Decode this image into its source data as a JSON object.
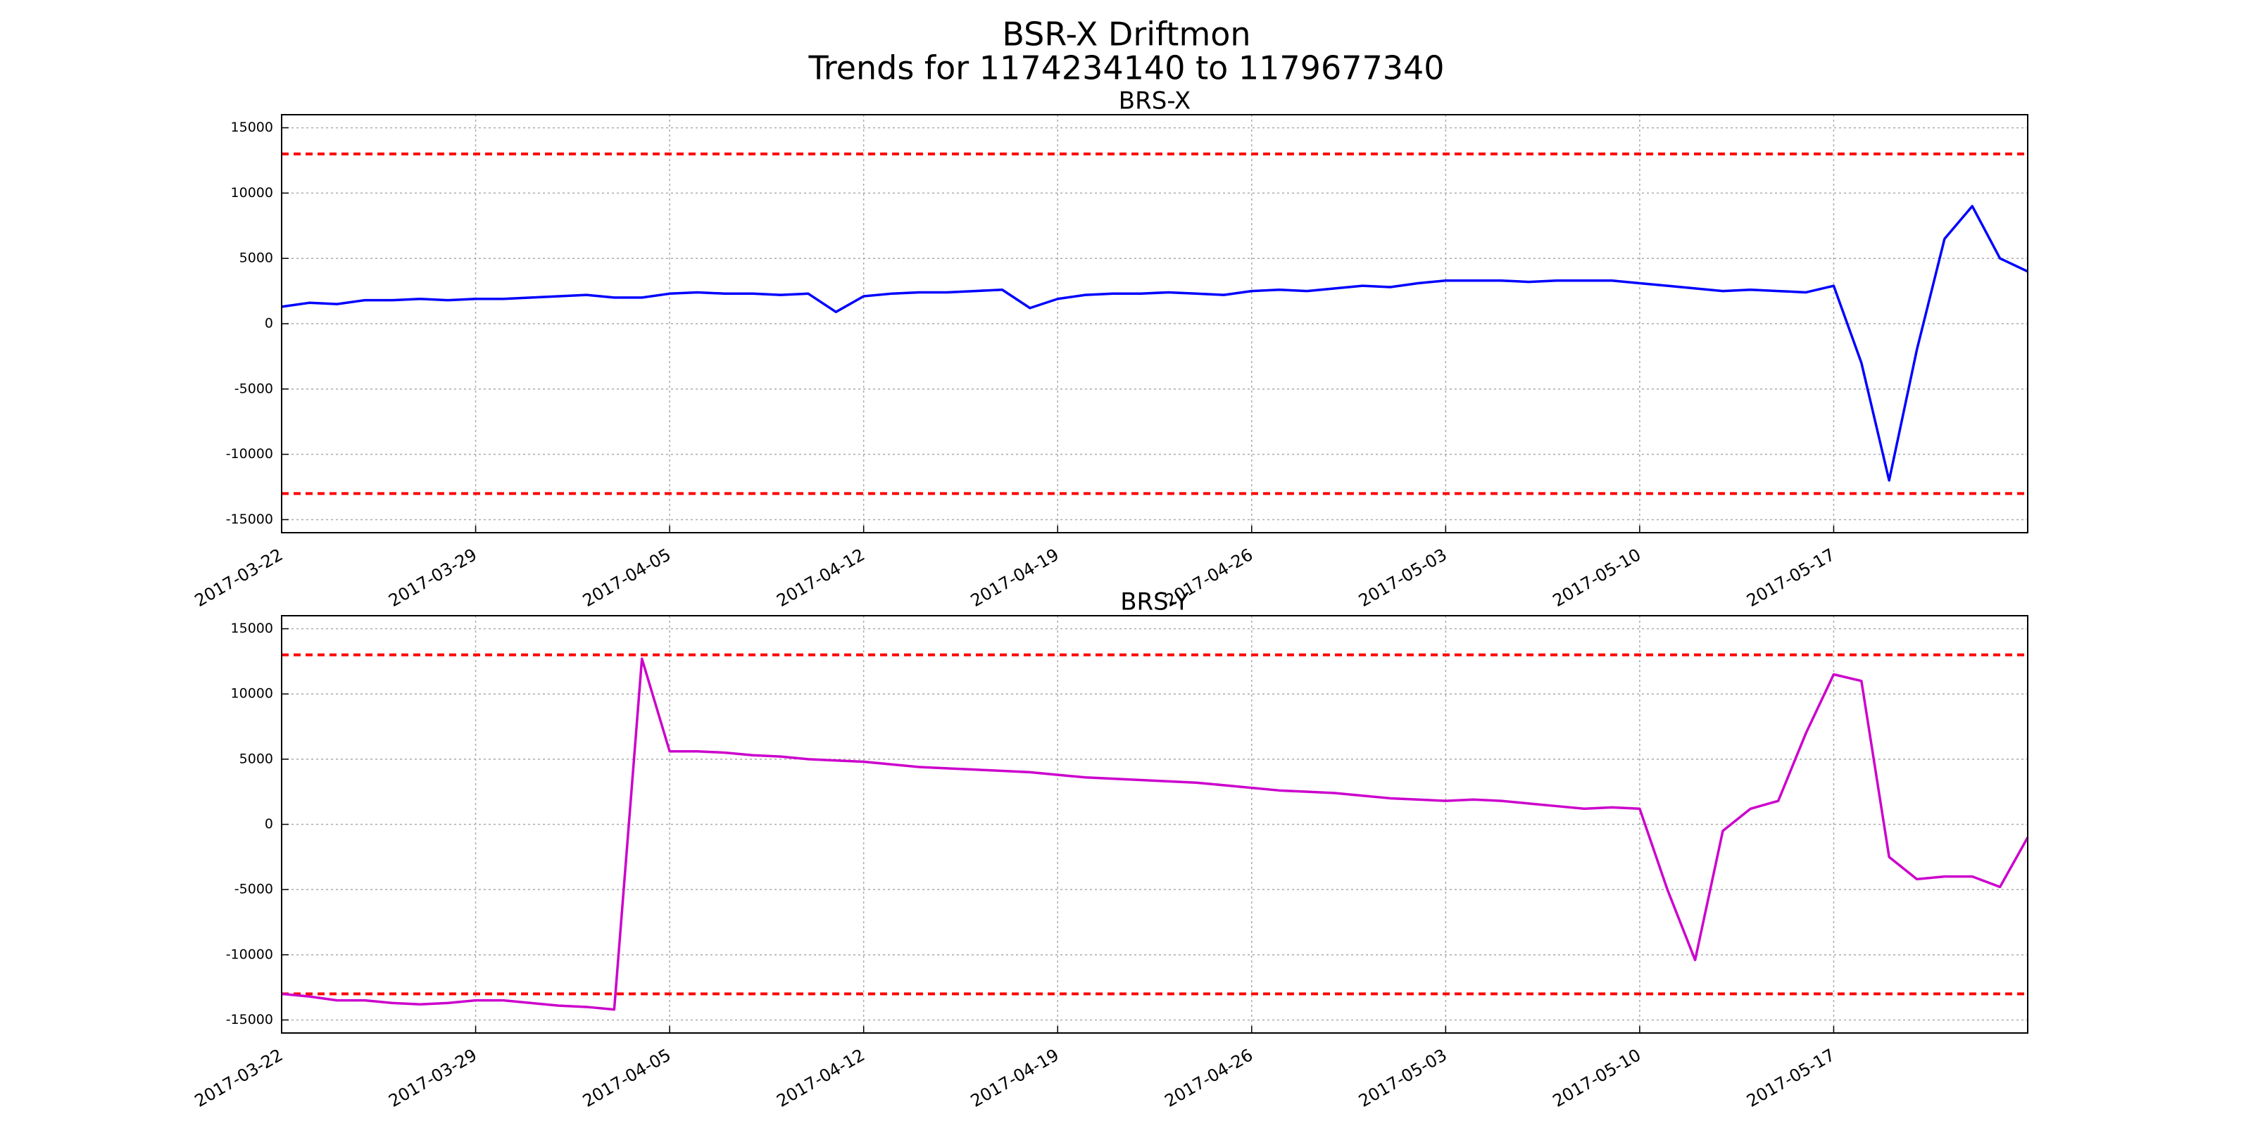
{
  "title_lines": [
    "BSR-X Driftmon",
    "Trends for 1174234140 to 1179677340"
  ],
  "chart_data": [
    {
      "type": "line",
      "title": "BRS-X",
      "x": [
        "2017-03-22",
        "2017-03-23",
        "2017-03-24",
        "2017-03-25",
        "2017-03-26",
        "2017-03-27",
        "2017-03-28",
        "2017-03-29",
        "2017-03-30",
        "2017-03-31",
        "2017-04-01",
        "2017-04-02",
        "2017-04-03",
        "2017-04-04",
        "2017-04-05",
        "2017-04-06",
        "2017-04-07",
        "2017-04-08",
        "2017-04-09",
        "2017-04-10",
        "2017-04-11",
        "2017-04-12",
        "2017-04-13",
        "2017-04-14",
        "2017-04-15",
        "2017-04-16",
        "2017-04-17",
        "2017-04-18",
        "2017-04-19",
        "2017-04-20",
        "2017-04-21",
        "2017-04-22",
        "2017-04-23",
        "2017-04-24",
        "2017-04-25",
        "2017-04-26",
        "2017-04-27",
        "2017-04-28",
        "2017-04-29",
        "2017-04-30",
        "2017-05-01",
        "2017-05-02",
        "2017-05-03",
        "2017-05-04",
        "2017-05-05",
        "2017-05-06",
        "2017-05-07",
        "2017-05-08",
        "2017-05-09",
        "2017-05-10",
        "2017-05-11",
        "2017-05-12",
        "2017-05-13",
        "2017-05-14",
        "2017-05-15",
        "2017-05-16",
        "2017-05-17",
        "2017-05-18",
        "2017-05-19",
        "2017-05-20",
        "2017-05-21",
        "2017-05-22",
        "2017-05-23",
        "2017-05-24"
      ],
      "series": [
        {
          "color": "#0000ff",
          "values": [
            1300,
            1600,
            1500,
            1800,
            1800,
            1900,
            1800,
            1900,
            1900,
            2000,
            2100,
            2200,
            2000,
            2000,
            2300,
            2400,
            2300,
            2300,
            2200,
            2300,
            900,
            2100,
            2300,
            2400,
            2400,
            2500,
            2600,
            1200,
            1900,
            2200,
            2300,
            2300,
            2400,
            2300,
            2200,
            2500,
            2600,
            2500,
            2700,
            2900,
            2800,
            3100,
            3300,
            3300,
            3300,
            3200,
            3300,
            3300,
            3300,
            3100,
            2900,
            2700,
            2500,
            2600,
            2500,
            2400,
            2900,
            -3000,
            -12000,
            -2000,
            6500,
            9000,
            5000,
            4000
          ]
        }
      ],
      "hlines": [
        {
          "value": 13000,
          "color": "#ff0000"
        },
        {
          "value": -13000,
          "color": "#ff0000"
        }
      ],
      "xlim": [
        "2017-03-22",
        "2017-05-24"
      ],
      "xticks": [
        "2017-03-22",
        "2017-03-29",
        "2017-04-05",
        "2017-04-12",
        "2017-04-19",
        "2017-04-26",
        "2017-05-03",
        "2017-05-10",
        "2017-05-17"
      ],
      "ylim": [
        -16000,
        16000
      ],
      "yticks": [
        -15000,
        -10000,
        -5000,
        0,
        5000,
        10000,
        15000
      ],
      "grid": true
    },
    {
      "type": "line",
      "title": "BRS-Y",
      "x": [
        "2017-03-22",
        "2017-03-23",
        "2017-03-24",
        "2017-03-25",
        "2017-03-26",
        "2017-03-27",
        "2017-03-28",
        "2017-03-29",
        "2017-03-30",
        "2017-03-31",
        "2017-04-01",
        "2017-04-02",
        "2017-04-03",
        "2017-04-04",
        "2017-04-05",
        "2017-04-06",
        "2017-04-07",
        "2017-04-08",
        "2017-04-09",
        "2017-04-10",
        "2017-04-11",
        "2017-04-12",
        "2017-04-13",
        "2017-04-14",
        "2017-04-15",
        "2017-04-16",
        "2017-04-17",
        "2017-04-18",
        "2017-04-19",
        "2017-04-20",
        "2017-04-21",
        "2017-04-22",
        "2017-04-23",
        "2017-04-24",
        "2017-04-25",
        "2017-04-26",
        "2017-04-27",
        "2017-04-28",
        "2017-04-29",
        "2017-04-30",
        "2017-05-01",
        "2017-05-02",
        "2017-05-03",
        "2017-05-04",
        "2017-05-05",
        "2017-05-06",
        "2017-05-07",
        "2017-05-08",
        "2017-05-09",
        "2017-05-10",
        "2017-05-11",
        "2017-05-12",
        "2017-05-13",
        "2017-05-14",
        "2017-05-15",
        "2017-05-16",
        "2017-05-17",
        "2017-05-18",
        "2017-05-19",
        "2017-05-20",
        "2017-05-21",
        "2017-05-22",
        "2017-05-23",
        "2017-05-24"
      ],
      "series": [
        {
          "color": "#cc00cc",
          "values": [
            -13000,
            -13200,
            -13500,
            -13500,
            -13700,
            -13800,
            -13700,
            -13500,
            -13500,
            -13700,
            -13900,
            -14000,
            -14200,
            12700,
            5600,
            5600,
            5500,
            5300,
            5200,
            5000,
            4900,
            4800,
            4600,
            4400,
            4300,
            4200,
            4100,
            4000,
            3800,
            3600,
            3500,
            3400,
            3300,
            3200,
            3000,
            2800,
            2600,
            2500,
            2400,
            2200,
            2000,
            1900,
            1800,
            1900,
            1800,
            1600,
            1400,
            1200,
            1300,
            1200,
            -5000,
            -10400,
            -500,
            1200,
            1800,
            7000,
            11500,
            11000,
            -2500,
            -4200,
            -4000,
            -4000,
            -4800,
            -1000
          ]
        }
      ],
      "hlines": [
        {
          "value": 13000,
          "color": "#ff0000"
        },
        {
          "value": -13000,
          "color": "#ff0000"
        }
      ],
      "xlim": [
        "2017-03-22",
        "2017-05-24"
      ],
      "xticks": [
        "2017-03-22",
        "2017-03-29",
        "2017-04-05",
        "2017-04-12",
        "2017-04-19",
        "2017-04-26",
        "2017-05-03",
        "2017-05-10",
        "2017-05-17"
      ],
      "ylim": [
        -16000,
        16000
      ],
      "yticks": [
        -15000,
        -10000,
        -5000,
        0,
        5000,
        10000,
        15000
      ],
      "grid": true
    }
  ]
}
